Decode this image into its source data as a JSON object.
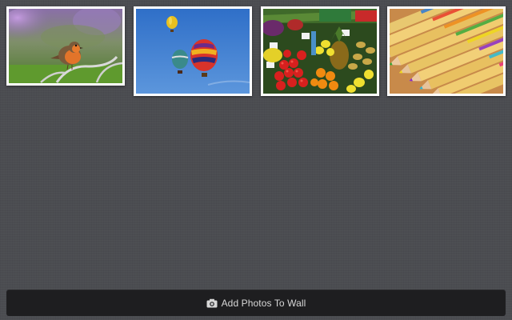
{
  "photo_wall": {
    "photos": [
      {
        "subject": "robin-on-fence"
      },
      {
        "subject": "hot-air-balloons"
      },
      {
        "subject": "vegetable-market"
      },
      {
        "subject": "colored-pencils"
      }
    ]
  },
  "add_button": {
    "label": "Add Photos To Wall",
    "icon": "camera-icon"
  },
  "colors": {
    "background": "#4b4c51",
    "button_bg": "#1e1e20",
    "button_text": "#d8d8d8",
    "photo_border": "#ffffff"
  }
}
